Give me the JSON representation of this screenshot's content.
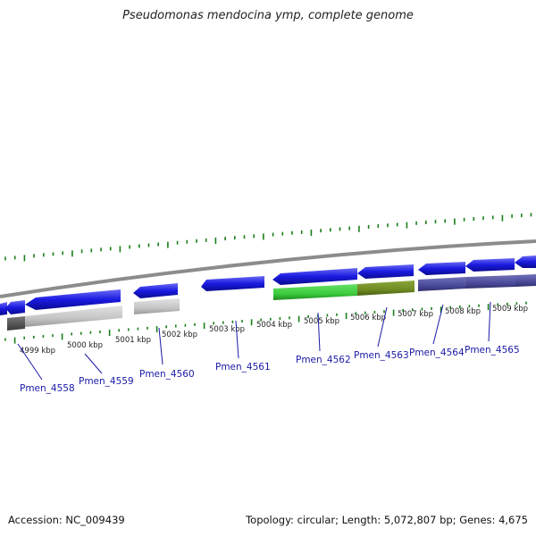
{
  "title": "Pseudomonas mendocina ymp, complete genome",
  "footer": {
    "accession": "Accession: NC_009439",
    "summary": "Topology: circular; Length: 5,072,807 bp; Genes: 4,675"
  },
  "colors": {
    "forward_gene": "#1a1ae0",
    "highlight_green": "#44d044",
    "highlight_olive": "#6e8a22",
    "highlight_slate": "#4a4a9a",
    "highlight_grey": "#c8c8c8",
    "backbone": "#8c8c8c",
    "tick_green": "#1a7f1a",
    "label_blue": "#1a1aa6"
  },
  "kbp_labels": [
    "4999 kbp",
    "5000 kbp",
    "5001 kbp",
    "5002 kbp",
    "5003 kbp",
    "5004 kbp",
    "5005 kbp",
    "5006 kbp",
    "5007 kbp",
    "5008 kbp",
    "5009 kbp"
  ],
  "gene_labels": [
    "Pmen_4558",
    "Pmen_4559",
    "Pmen_4560",
    "Pmen_4561",
    "Pmen_4562",
    "Pmen_4563",
    "Pmen_4564",
    "Pmen_4565"
  ]
}
